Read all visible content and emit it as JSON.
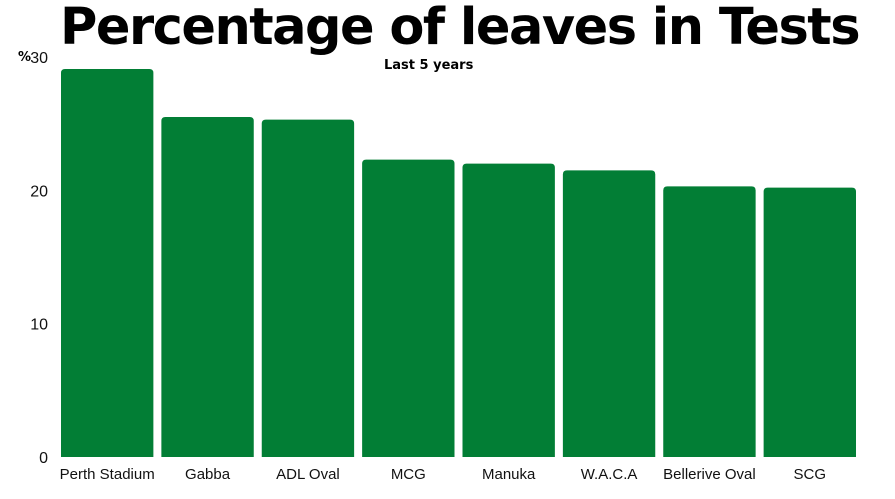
{
  "chart_data": {
    "type": "bar",
    "title": "Percentage of leaves in Tests",
    "subtitle": "Last 5 years",
    "unit_label": "%",
    "categories": [
      "Perth Stadium",
      "Gabba",
      "ADL Oval",
      "MCG",
      "Manuka",
      "W.A.C.A",
      "Bellerive Oval",
      "SCG"
    ],
    "values": [
      29.1,
      25.5,
      25.3,
      22.3,
      22.0,
      21.5,
      20.3,
      20.2
    ],
    "ylim": [
      0,
      30
    ],
    "yticks": [
      "0",
      "10",
      "20",
      "30"
    ],
    "bar_color": "#027E35",
    "grid": false,
    "legend": "none"
  }
}
